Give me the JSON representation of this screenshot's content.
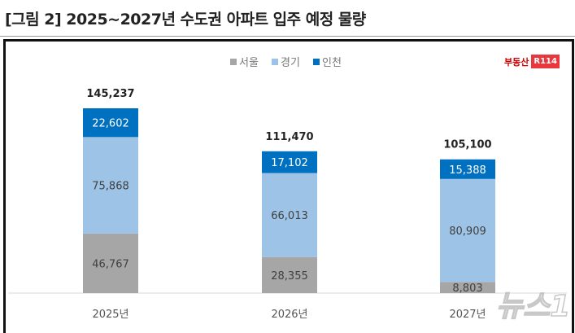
{
  "title": "[그림 2] 2025~2027년 수도권 아파트 입주 예정 물량",
  "logo": {
    "text": "부동산",
    "badge": "R114"
  },
  "watermark": "뉴스1",
  "chart_data": {
    "type": "bar",
    "stacked": true,
    "categories": [
      "2025년",
      "2026년",
      "2027년"
    ],
    "series": [
      {
        "name": "서울",
        "color": "#a6a6a6",
        "values": [
          46767,
          28355,
          8803
        ]
      },
      {
        "name": "경기",
        "color": "#9dc3e6",
        "values": [
          75868,
          66013,
          80909
        ]
      },
      {
        "name": "인천",
        "color": "#0070c0",
        "values": [
          22602,
          17102,
          15388
        ]
      }
    ],
    "totals": [
      145237,
      111470,
      105100
    ],
    "total_labels": [
      "145,237",
      "111,470",
      "105,100"
    ],
    "value_labels": [
      [
        "46,767",
        "28,355",
        "8,803"
      ],
      [
        "75,868",
        "66,013",
        "80,909"
      ],
      [
        "22,602",
        "17,102",
        "15,388"
      ]
    ],
    "legend_position": "top",
    "grid": false
  }
}
